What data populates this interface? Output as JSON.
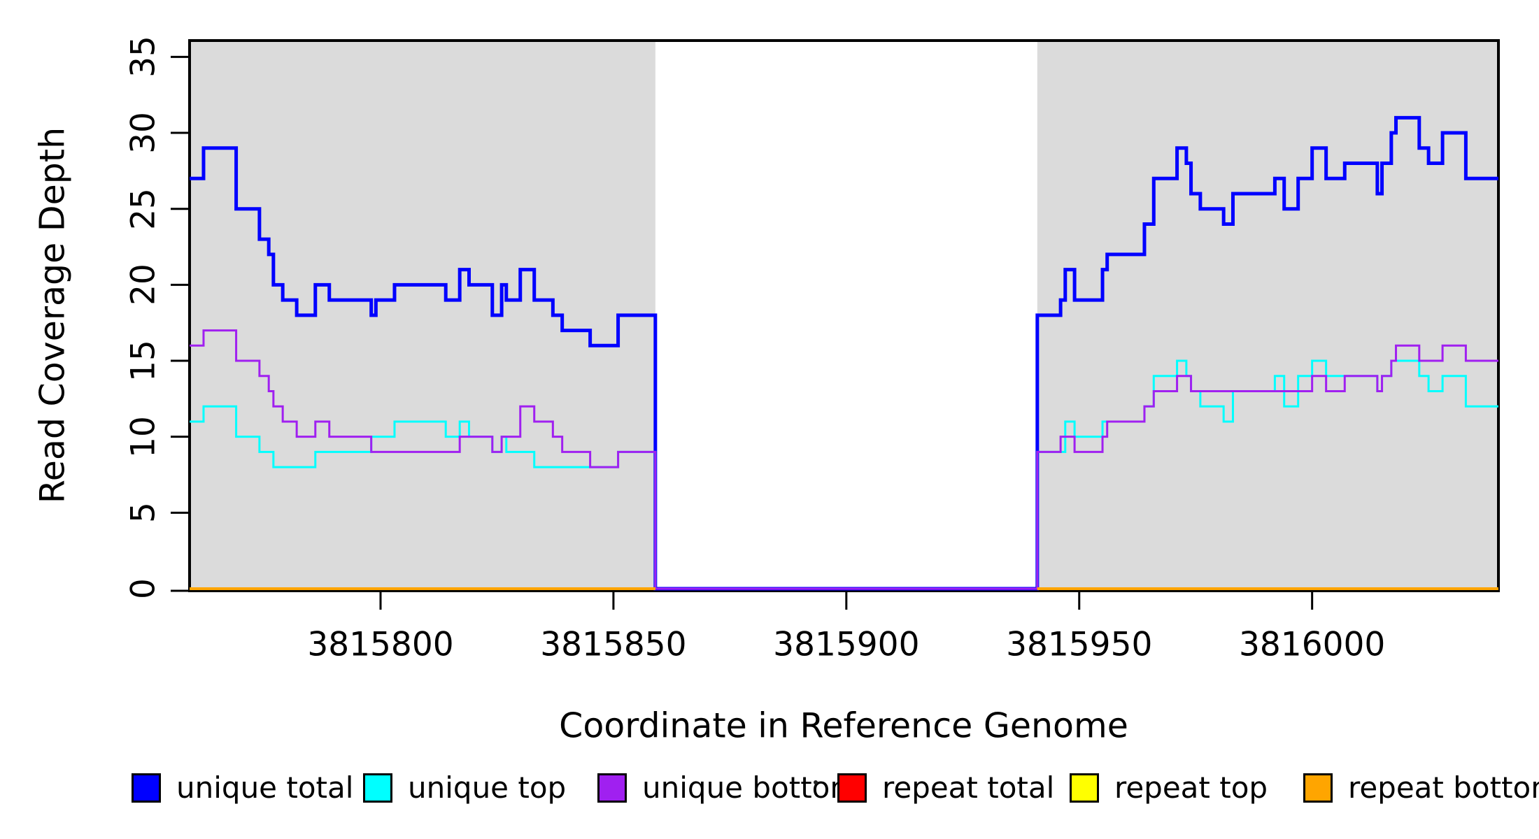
{
  "y_axis": {
    "label": "Read Coverage Depth",
    "ticks": [
      "0",
      "5",
      "10",
      "15",
      "20",
      "25",
      "30",
      "35"
    ],
    "tick_values": [
      0,
      5,
      10,
      15,
      20,
      25,
      30,
      35
    ]
  },
  "x_axis": {
    "label": "Coordinate in Reference Genome",
    "ticks": [
      "3815800",
      "3815850",
      "3815900",
      "3815950",
      "3816000"
    ],
    "tick_values": [
      3815800,
      3815850,
      3815900,
      3815950,
      3816000
    ]
  },
  "legend": {
    "items": [
      {
        "label": "unique total",
        "color": "#0000FF"
      },
      {
        "label": "unique top",
        "color": "#00FFFF"
      },
      {
        "label": "unique bottom",
        "color": "#A020F0"
      },
      {
        "label": "repeat total",
        "color": "#FF0000"
      },
      {
        "label": "repeat top",
        "color": "#FFFF00"
      },
      {
        "label": "repeat bottom",
        "color": "#FFA500"
      }
    ]
  },
  "chart_data": {
    "type": "line",
    "step": true,
    "title": "",
    "xlabel": "Coordinate in Reference Genome",
    "ylabel": "Read Coverage Depth",
    "xlim": [
      3815759,
      3816040
    ],
    "ylim": [
      0,
      36.1
    ],
    "grid": false,
    "legend_position": "bottom",
    "background_bands": {
      "color": "#DBDBDB",
      "regions": [
        {
          "from": 3815759,
          "to": 3815859
        },
        {
          "from": 3815941,
          "to": 3816040
        }
      ]
    },
    "gap_region": {
      "from": 3815859,
      "to": 3815941,
      "note": "all unique series drop to 0; repeat series not drawn"
    },
    "series": [
      {
        "name": "unique total",
        "color": "#0000FF",
        "width": 5,
        "segments": [
          {
            "end": 3816040,
            "steps": [
              [
                3815759,
                27
              ],
              [
                3815762,
                29
              ],
              [
                3815769,
                25
              ],
              [
                3815774,
                23
              ],
              [
                3815776,
                22
              ],
              [
                3815777,
                20
              ],
              [
                3815779,
                19
              ],
              [
                3815782,
                18
              ],
              [
                3815786,
                20
              ],
              [
                3815789,
                19
              ],
              [
                3815798,
                18
              ],
              [
                3815799,
                19
              ],
              [
                3815803,
                20
              ],
              [
                3815814,
                19
              ],
              [
                3815817,
                21
              ],
              [
                3815819,
                20
              ],
              [
                3815824,
                18
              ],
              [
                3815826,
                20
              ],
              [
                3815827,
                19
              ],
              [
                3815830,
                21
              ],
              [
                3815833,
                19
              ],
              [
                3815837,
                18
              ],
              [
                3815839,
                17
              ],
              [
                3815845,
                16
              ],
              [
                3815851,
                18
              ],
              [
                3815859,
                0
              ],
              [
                3815941,
                18
              ],
              [
                3815946,
                19
              ],
              [
                3815947,
                21
              ],
              [
                3815949,
                19
              ],
              [
                3815955,
                21
              ],
              [
                3815956,
                22
              ],
              [
                3815964,
                24
              ],
              [
                3815966,
                27
              ],
              [
                3815971,
                29
              ],
              [
                3815973,
                28
              ],
              [
                3815974,
                26
              ],
              [
                3815976,
                25
              ],
              [
                3815981,
                24
              ],
              [
                3815983,
                26
              ],
              [
                3815992,
                27
              ],
              [
                3815994,
                25
              ],
              [
                3815997,
                27
              ],
              [
                3816000,
                29
              ],
              [
                3816003,
                27
              ],
              [
                3816007,
                28
              ],
              [
                3816014,
                26
              ],
              [
                3816015,
                28
              ],
              [
                3816017,
                30
              ],
              [
                3816018,
                31
              ],
              [
                3816023,
                29
              ],
              [
                3816025,
                28
              ],
              [
                3816028,
                30
              ],
              [
                3816033,
                27
              ]
            ]
          }
        ]
      },
      {
        "name": "unique top",
        "color": "#00FFFF",
        "width": 3,
        "segments": [
          {
            "end": 3816040,
            "steps": [
              [
                3815759,
                11
              ],
              [
                3815762,
                12
              ],
              [
                3815769,
                10
              ],
              [
                3815774,
                9
              ],
              [
                3815777,
                8
              ],
              [
                3815786,
                9
              ],
              [
                3815798,
                10
              ],
              [
                3815803,
                11
              ],
              [
                3815814,
                10
              ],
              [
                3815817,
                11
              ],
              [
                3815819,
                10
              ],
              [
                3815824,
                9
              ],
              [
                3815826,
                10
              ],
              [
                3815827,
                9
              ],
              [
                3815833,
                8
              ],
              [
                3815851,
                9
              ],
              [
                3815859,
                0
              ],
              [
                3815941,
                9
              ],
              [
                3815947,
                11
              ],
              [
                3815949,
                10
              ],
              [
                3815955,
                11
              ],
              [
                3815964,
                12
              ],
              [
                3815966,
                14
              ],
              [
                3815971,
                15
              ],
              [
                3815973,
                14
              ],
              [
                3815974,
                13
              ],
              [
                3815976,
                12
              ],
              [
                3815981,
                11
              ],
              [
                3815983,
                13
              ],
              [
                3815992,
                14
              ],
              [
                3815994,
                12
              ],
              [
                3815997,
                14
              ],
              [
                3816000,
                15
              ],
              [
                3816003,
                14
              ],
              [
                3816014,
                13
              ],
              [
                3816015,
                14
              ],
              [
                3816017,
                15
              ],
              [
                3816023,
                14
              ],
              [
                3816025,
                13
              ],
              [
                3816028,
                14
              ],
              [
                3816033,
                12
              ]
            ]
          }
        ]
      },
      {
        "name": "unique bottom",
        "color": "#A020F0",
        "width": 3,
        "segments": [
          {
            "end": 3816040,
            "steps": [
              [
                3815759,
                16
              ],
              [
                3815762,
                17
              ],
              [
                3815769,
                15
              ],
              [
                3815774,
                14
              ],
              [
                3815776,
                13
              ],
              [
                3815777,
                12
              ],
              [
                3815779,
                11
              ],
              [
                3815782,
                10
              ],
              [
                3815786,
                11
              ],
              [
                3815789,
                10
              ],
              [
                3815798,
                9
              ],
              [
                3815817,
                10
              ],
              [
                3815824,
                9
              ],
              [
                3815826,
                10
              ],
              [
                3815830,
                12
              ],
              [
                3815833,
                11
              ],
              [
                3815837,
                10
              ],
              [
                3815839,
                9
              ],
              [
                3815845,
                8
              ],
              [
                3815851,
                9
              ],
              [
                3815859,
                0
              ],
              [
                3815941,
                9
              ],
              [
                3815946,
                10
              ],
              [
                3815949,
                9
              ],
              [
                3815955,
                10
              ],
              [
                3815956,
                11
              ],
              [
                3815964,
                12
              ],
              [
                3815966,
                13
              ],
              [
                3815971,
                14
              ],
              [
                3815974,
                13
              ],
              [
                3816000,
                14
              ],
              [
                3816003,
                13
              ],
              [
                3816007,
                14
              ],
              [
                3816014,
                13
              ],
              [
                3816015,
                14
              ],
              [
                3816017,
                15
              ],
              [
                3816018,
                16
              ],
              [
                3816023,
                15
              ],
              [
                3816028,
                16
              ],
              [
                3816033,
                15
              ]
            ]
          }
        ]
      },
      {
        "name": "repeat total",
        "color": "#FF0000",
        "width": 3,
        "segments": [
          {
            "end": 3815859,
            "steps": [
              [
                3815759,
                0
              ]
            ]
          },
          {
            "end": 3816040,
            "steps": [
              [
                3815941,
                0
              ]
            ]
          }
        ]
      },
      {
        "name": "repeat top",
        "color": "#FFFF00",
        "width": 3,
        "segments": [
          {
            "end": 3815859,
            "steps": [
              [
                3815759,
                0
              ]
            ]
          },
          {
            "end": 3816040,
            "steps": [
              [
                3815941,
                0
              ]
            ]
          }
        ]
      },
      {
        "name": "repeat bottom",
        "color": "#FFA500",
        "width": 4,
        "segments": [
          {
            "end": 3815859,
            "steps": [
              [
                3815759,
                0
              ]
            ]
          },
          {
            "end": 3816040,
            "steps": [
              [
                3815941,
                0
              ]
            ]
          }
        ]
      }
    ]
  }
}
